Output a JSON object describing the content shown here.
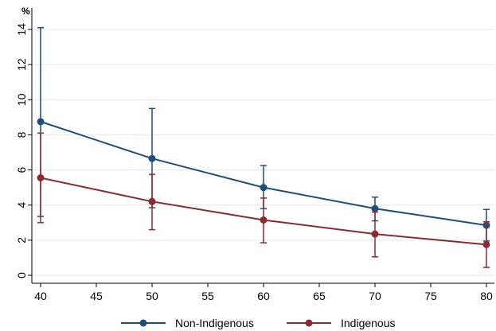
{
  "chart_data": {
    "type": "line",
    "ylabel": "%",
    "xlim": [
      40,
      80
    ],
    "ylim": [
      0,
      14
    ],
    "x_ticks": [
      "40",
      "45",
      "50",
      "55",
      "60",
      "65",
      "70",
      "75",
      "80"
    ],
    "y_ticks": [
      "0",
      "2",
      "4",
      "6",
      "8",
      "10",
      "12",
      "14"
    ],
    "grid": "horizontal",
    "legend_position": "bottom",
    "x": [
      40,
      50,
      60,
      70,
      80
    ],
    "series": [
      {
        "name": "Non-Indigenous",
        "color": "#1f4e79",
        "values": [
          8.75,
          6.65,
          5.0,
          3.8,
          2.85
        ],
        "error_low": [
          3.35,
          3.85,
          3.8,
          3.1,
          1.95
        ],
        "error_high": [
          14.1,
          9.5,
          6.25,
          4.45,
          3.75
        ]
      },
      {
        "name": "Indigenous",
        "color": "#8b2a33",
        "values": [
          5.55,
          4.2,
          3.15,
          2.35,
          1.75
        ],
        "error_low": [
          3.0,
          2.6,
          1.85,
          1.05,
          0.45
        ],
        "error_high": [
          8.1,
          5.75,
          4.4,
          3.6,
          3.05
        ]
      }
    ]
  }
}
